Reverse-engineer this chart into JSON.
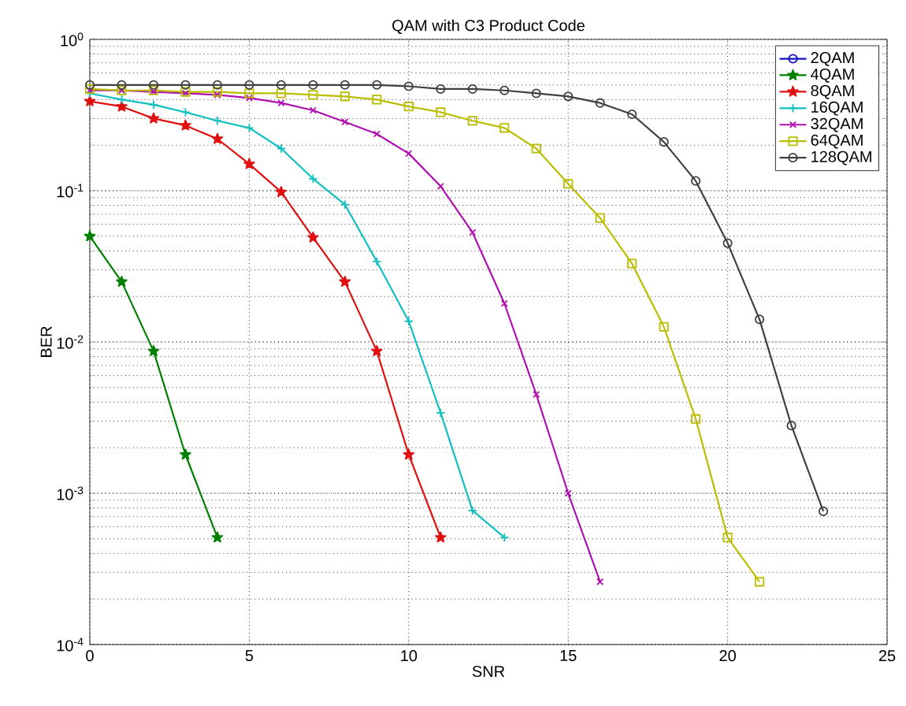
{
  "chart_data": {
    "type": "line",
    "title": "QAM with C3 Product Code",
    "xlabel": "SNR",
    "ylabel": "BER",
    "log": "y",
    "grid": true,
    "legend": "top right",
    "line_style": "solid",
    "xlim": [
      0,
      25
    ],
    "xticks": [
      0,
      5,
      10,
      15,
      20,
      25
    ],
    "ylim": [
      0.0001,
      1
    ],
    "yticks": [
      {
        "value": 0.0001,
        "label": "10$^{-4}$"
      },
      {
        "value": 0.001,
        "label": "10$^{-3}$"
      },
      {
        "value": 0.01,
        "label": "10$^{-2}$"
      },
      {
        "value": 0.1,
        "label": "10$^{-1}$"
      },
      {
        "value": 1,
        "label": "10$^{0}$"
      }
    ],
    "series": [
      {
        "name": "2QAM",
        "color": "#1010c0",
        "marker": "circle"
      },
      {
        "name": "4QAM",
        "color": "#008000",
        "marker": "star",
        "x": [
          0,
          1,
          2,
          3,
          4
        ],
        "values": [
          0.05,
          0.025,
          0.0087,
          0.0018,
          0.00051
        ]
      },
      {
        "name": "8QAM",
        "color": "#e01010",
        "marker": "star",
        "x": [
          0,
          1,
          2,
          3,
          4,
          5,
          6,
          7,
          8,
          9,
          10,
          11
        ],
        "values": [
          0.39,
          0.36,
          0.3,
          0.27,
          0.22,
          0.15,
          0.098,
          0.049,
          0.025,
          0.0087,
          0.0018,
          0.00051
        ]
      },
      {
        "name": "16QAM",
        "color": "#10c0c0",
        "marker": "plus",
        "x": [
          0,
          1,
          2,
          3,
          4,
          5,
          6,
          7,
          8,
          9,
          10,
          11,
          12,
          13
        ],
        "values": [
          0.44,
          0.4,
          0.37,
          0.33,
          0.29,
          0.26,
          0.19,
          0.12,
          0.081,
          0.034,
          0.0137,
          0.0034,
          0.00077,
          0.00051
        ]
      },
      {
        "name": "32QAM",
        "color": "#b010b0",
        "marker": "cross",
        "x": [
          0,
          1,
          2,
          3,
          4,
          5,
          6,
          7,
          8,
          9,
          10,
          11,
          12,
          13,
          14,
          15,
          16
        ],
        "values": [
          0.46,
          0.46,
          0.45,
          0.44,
          0.43,
          0.41,
          0.38,
          0.34,
          0.285,
          0.237,
          0.176,
          0.107,
          0.053,
          0.018,
          0.0045,
          0.001,
          0.00026
        ]
      },
      {
        "name": "64QAM",
        "color": "#bcbc00",
        "marker": "square",
        "x": [
          0,
          1,
          2,
          3,
          4,
          5,
          6,
          7,
          8,
          9,
          10,
          11,
          12,
          13,
          14,
          15,
          16,
          17,
          18,
          19,
          20,
          21
        ],
        "values": [
          0.47,
          0.46,
          0.46,
          0.45,
          0.45,
          0.44,
          0.44,
          0.43,
          0.42,
          0.4,
          0.36,
          0.33,
          0.29,
          0.26,
          0.19,
          0.111,
          0.066,
          0.033,
          0.0126,
          0.0031,
          0.00051,
          0.00026
        ]
      },
      {
        "name": "128QAM",
        "color": "#404040",
        "marker": "circle",
        "x": [
          0,
          1,
          2,
          3,
          4,
          5,
          6,
          7,
          8,
          9,
          10,
          11,
          12,
          13,
          14,
          15,
          16,
          17,
          18,
          19,
          20,
          21,
          22,
          23
        ],
        "values": [
          0.5,
          0.5,
          0.5,
          0.5,
          0.5,
          0.5,
          0.5,
          0.5,
          0.5,
          0.5,
          0.49,
          0.47,
          0.47,
          0.46,
          0.44,
          0.42,
          0.38,
          0.32,
          0.21,
          0.116,
          0.045,
          0.0141,
          0.0028,
          0.00076
        ]
      }
    ]
  }
}
